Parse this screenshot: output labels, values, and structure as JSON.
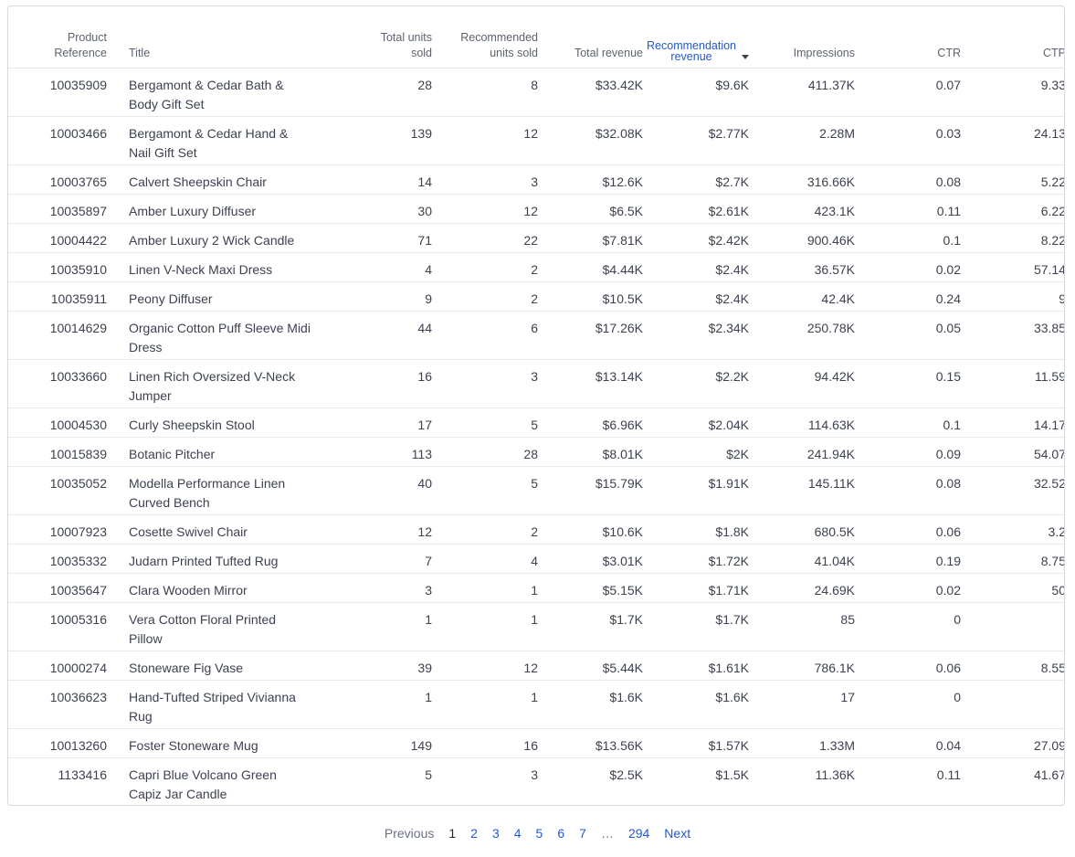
{
  "table": {
    "columns": {
      "ref": [
        "Product",
        "Reference"
      ],
      "title": "Title",
      "total_units": [
        "Total units",
        "sold"
      ],
      "rec_units": [
        "Recommended",
        "units sold"
      ],
      "total_revenue": "Total revenue",
      "rec_revenue": [
        "Recommendation",
        "revenue"
      ],
      "impressions": "Impressions",
      "ctr": "CTR",
      "ctp": "CTP"
    },
    "rows": [
      {
        "ref": "10035909",
        "title": "Bergamont & Cedar Bath & Body Gift Set",
        "total_units": "28",
        "rec_units": "8",
        "total_revenue": "$33.42K",
        "rec_revenue": "$9.6K",
        "impressions": "411.37K",
        "ctr": "0.07",
        "ctp": "9.33"
      },
      {
        "ref": "10003466",
        "title": "Bergamont & Cedar Hand & Nail Gift Set",
        "total_units": "139",
        "rec_units": "12",
        "total_revenue": "$32.08K",
        "rec_revenue": "$2.77K",
        "impressions": "2.28M",
        "ctr": "0.03",
        "ctp": "24.13"
      },
      {
        "ref": "10003765",
        "title": "Calvert Sheepskin Chair",
        "total_units": "14",
        "rec_units": "3",
        "total_revenue": "$12.6K",
        "rec_revenue": "$2.7K",
        "impressions": "316.66K",
        "ctr": "0.08",
        "ctp": "5.22"
      },
      {
        "ref": "10035897",
        "title": "Amber Luxury Diffuser",
        "total_units": "30",
        "rec_units": "12",
        "total_revenue": "$6.5K",
        "rec_revenue": "$2.61K",
        "impressions": "423.1K",
        "ctr": "0.11",
        "ctp": "6.22"
      },
      {
        "ref": "10004422",
        "title": "Amber Luxury 2 Wick Candle",
        "total_units": "71",
        "rec_units": "22",
        "total_revenue": "$7.81K",
        "rec_revenue": "$2.42K",
        "impressions": "900.46K",
        "ctr": "0.1",
        "ctp": "8.22"
      },
      {
        "ref": "10035910",
        "title": "Linen V-Neck Maxi Dress",
        "total_units": "4",
        "rec_units": "2",
        "total_revenue": "$4.44K",
        "rec_revenue": "$2.4K",
        "impressions": "36.57K",
        "ctr": "0.02",
        "ctp": "57.14"
      },
      {
        "ref": "10035911",
        "title": "Peony Diffuser",
        "total_units": "9",
        "rec_units": "2",
        "total_revenue": "$10.5K",
        "rec_revenue": "$2.4K",
        "impressions": "42.4K",
        "ctr": "0.24",
        "ctp": "9"
      },
      {
        "ref": "10014629",
        "title": "Organic Cotton Puff Sleeve Midi Dress",
        "total_units": "44",
        "rec_units": "6",
        "total_revenue": "$17.26K",
        "rec_revenue": "$2.34K",
        "impressions": "250.78K",
        "ctr": "0.05",
        "ctp": "33.85"
      },
      {
        "ref": "10033660",
        "title": "Linen Rich Oversized V-Neck Jumper",
        "total_units": "16",
        "rec_units": "3",
        "total_revenue": "$13.14K",
        "rec_revenue": "$2.2K",
        "impressions": "94.42K",
        "ctr": "0.15",
        "ctp": "11.59"
      },
      {
        "ref": "10004530",
        "title": "Curly Sheepskin Stool",
        "total_units": "17",
        "rec_units": "5",
        "total_revenue": "$6.96K",
        "rec_revenue": "$2.04K",
        "impressions": "114.63K",
        "ctr": "0.1",
        "ctp": "14.17"
      },
      {
        "ref": "10015839",
        "title": "Botanic Pitcher",
        "total_units": "113",
        "rec_units": "28",
        "total_revenue": "$8.01K",
        "rec_revenue": "$2K",
        "impressions": "241.94K",
        "ctr": "0.09",
        "ctp": "54.07"
      },
      {
        "ref": "10035052",
        "title": "Modella Performance Linen Curved Bench",
        "total_units": "40",
        "rec_units": "5",
        "total_revenue": "$15.79K",
        "rec_revenue": "$1.91K",
        "impressions": "145.11K",
        "ctr": "0.08",
        "ctp": "32.52"
      },
      {
        "ref": "10007923",
        "title": "Cosette Swivel Chair",
        "total_units": "12",
        "rec_units": "2",
        "total_revenue": "$10.6K",
        "rec_revenue": "$1.8K",
        "impressions": "680.5K",
        "ctr": "0.06",
        "ctp": "3.2"
      },
      {
        "ref": "10035332",
        "title": "Judarn Printed Tufted Rug",
        "total_units": "7",
        "rec_units": "4",
        "total_revenue": "$3.01K",
        "rec_revenue": "$1.72K",
        "impressions": "41.04K",
        "ctr": "0.19",
        "ctp": "8.75"
      },
      {
        "ref": "10035647",
        "title": "Clara Wooden Mirror",
        "total_units": "3",
        "rec_units": "1",
        "total_revenue": "$5.15K",
        "rec_revenue": "$1.71K",
        "impressions": "24.69K",
        "ctr": "0.02",
        "ctp": "50"
      },
      {
        "ref": "10005316",
        "title": "Vera Cotton Floral Printed Pillow",
        "total_units": "1",
        "rec_units": "1",
        "total_revenue": "$1.7K",
        "rec_revenue": "$1.7K",
        "impressions": "85",
        "ctr": "0",
        "ctp": ""
      },
      {
        "ref": "10000274",
        "title": "Stoneware Fig Vase",
        "total_units": "39",
        "rec_units": "12",
        "total_revenue": "$5.44K",
        "rec_revenue": "$1.61K",
        "impressions": "786.1K",
        "ctr": "0.06",
        "ctp": "8.55"
      },
      {
        "ref": "10036623",
        "title": "Hand-Tufted Striped Vivianna Rug",
        "total_units": "1",
        "rec_units": "1",
        "total_revenue": "$1.6K",
        "rec_revenue": "$1.6K",
        "impressions": "17",
        "ctr": "0",
        "ctp": ""
      },
      {
        "ref": "10013260",
        "title": "Foster Stoneware Mug",
        "total_units": "149",
        "rec_units": "16",
        "total_revenue": "$13.56K",
        "rec_revenue": "$1.57K",
        "impressions": "1.33M",
        "ctr": "0.04",
        "ctp": "27.09"
      },
      {
        "ref": "1133416",
        "title": "Capri Blue Volcano Green Capiz Jar Candle",
        "total_units": "5",
        "rec_units": "3",
        "total_revenue": "$2.5K",
        "rec_revenue": "$1.5K",
        "impressions": "11.36K",
        "ctr": "0.11",
        "ctp": "41.67"
      }
    ]
  },
  "pagination": {
    "previous": "Previous",
    "pages": [
      "1",
      "2",
      "3",
      "4",
      "5",
      "6",
      "7"
    ],
    "current": "1",
    "ellipsis": "…",
    "last": "294",
    "next": "Next"
  },
  "colors": {
    "link": "#2457d6",
    "text": "#3d4250",
    "border": "#d6d9de"
  },
  "icons": {
    "sort": "caret-down-icon"
  }
}
